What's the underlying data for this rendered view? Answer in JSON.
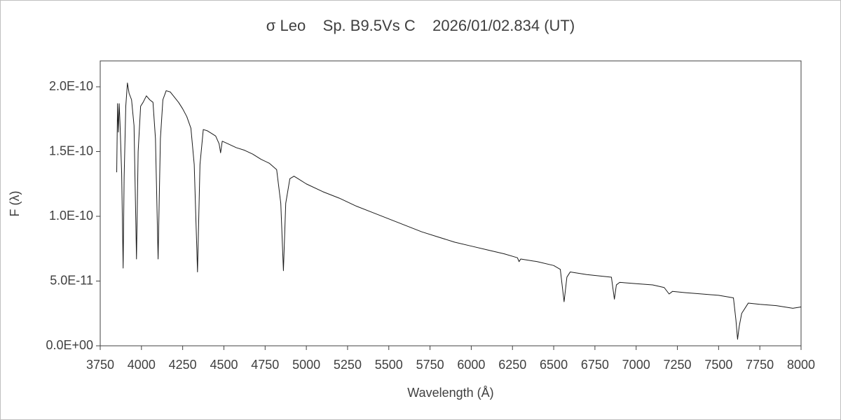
{
  "chart_data": {
    "type": "line",
    "title": "σ Leo    Sp. B9.5Vs C    2026/01/02.834 (UT)",
    "x_label": "Wavelength (Å)",
    "y_label": "F (λ)",
    "xlim": [
      3750,
      8000
    ],
    "xticks": [
      3750,
      4000,
      4250,
      4500,
      4750,
      5000,
      5250,
      5500,
      5750,
      6000,
      6250,
      6500,
      6750,
      7000,
      7250,
      7500,
      7750,
      8000
    ],
    "ylim": [
      0,
      2.2e-10
    ],
    "yticks": [
      {
        "value": 0,
        "label": "0.0E+00"
      },
      {
        "value": 5e-11,
        "label": "5.0E-11"
      },
      {
        "value": 1e-10,
        "label": "1.0E-10"
      },
      {
        "value": 1.5e-10,
        "label": "1.5E-10"
      },
      {
        "value": 2e-10,
        "label": "2.0E-10"
      }
    ],
    "grid": false,
    "series": [
      {
        "color": "#1a1a1a",
        "x": [
          3850,
          3855,
          3860,
          3865,
          3870,
          3880,
          3889,
          3895,
          3905,
          3915,
          3925,
          3940,
          3955,
          3970,
          3980,
          3995,
          4010,
          4030,
          4050,
          4070,
          4085,
          4101,
          4115,
          4130,
          4150,
          4175,
          4200,
          4225,
          4250,
          4275,
          4300,
          4320,
          4340,
          4355,
          4375,
          4400,
          4425,
          4450,
          4471,
          4480,
          4490,
          4525,
          4575,
          4625,
          4675,
          4725,
          4775,
          4820,
          4845,
          4861,
          4875,
          4900,
          4925,
          4950,
          5000,
          5100,
          5200,
          5300,
          5400,
          5500,
          5600,
          5700,
          5800,
          5900,
          6000,
          6100,
          6200,
          6280,
          6290,
          6300,
          6400,
          6500,
          6540,
          6563,
          6580,
          6600,
          6700,
          6850,
          6868,
          6880,
          6900,
          7000,
          7100,
          7170,
          7200,
          7220,
          7300,
          7400,
          7500,
          7590,
          7605,
          7615,
          7625,
          7640,
          7680,
          7750,
          7850,
          7950,
          8000
        ],
        "values": [
          1.34e-10,
          1.87e-10,
          1.65e-10,
          1.87e-10,
          1.72e-10,
          1.33e-10,
          6e-11,
          1.3e-10,
          1.85e-10,
          2.03e-10,
          1.95e-10,
          1.9e-10,
          1.7e-10,
          6.7e-11,
          1.5e-10,
          1.85e-10,
          1.88e-10,
          1.93e-10,
          1.9e-10,
          1.88e-10,
          1.6e-10,
          6.7e-11,
          1.6e-10,
          1.9e-10,
          1.97e-10,
          1.96e-10,
          1.92e-10,
          1.88e-10,
          1.83e-10,
          1.77e-10,
          1.68e-10,
          1.4e-10,
          5.7e-11,
          1.4e-10,
          1.67e-10,
          1.66e-10,
          1.64e-10,
          1.62e-10,
          1.56e-10,
          1.49e-10,
          1.58e-10,
          1.56e-10,
          1.53e-10,
          1.51e-10,
          1.48e-10,
          1.44e-10,
          1.41e-10,
          1.36e-10,
          1.1e-10,
          5.8e-11,
          1.1e-10,
          1.29e-10,
          1.31e-10,
          1.29e-10,
          1.25e-10,
          1.19e-10,
          1.14e-10,
          1.08e-10,
          1.03e-10,
          9.8e-11,
          9.3e-11,
          8.8e-11,
          8.4e-11,
          8e-11,
          7.7e-11,
          7.4e-11,
          7.1e-11,
          6.8e-11,
          6.5e-11,
          6.7e-11,
          6.5e-11,
          6.2e-11,
          5.9e-11,
          3.4e-11,
          5.3e-11,
          5.7e-11,
          5.5e-11,
          5.3e-11,
          3.6e-11,
          4.7e-11,
          4.9e-11,
          4.8e-11,
          4.7e-11,
          4.5e-11,
          4e-11,
          4.2e-11,
          4.1e-11,
          4e-11,
          3.9e-11,
          3.7e-11,
          2e-11,
          5e-12,
          1.5e-11,
          2.5e-11,
          3.3e-11,
          3.2e-11,
          3.1e-11,
          2.9e-11,
          3e-11
        ]
      }
    ]
  }
}
